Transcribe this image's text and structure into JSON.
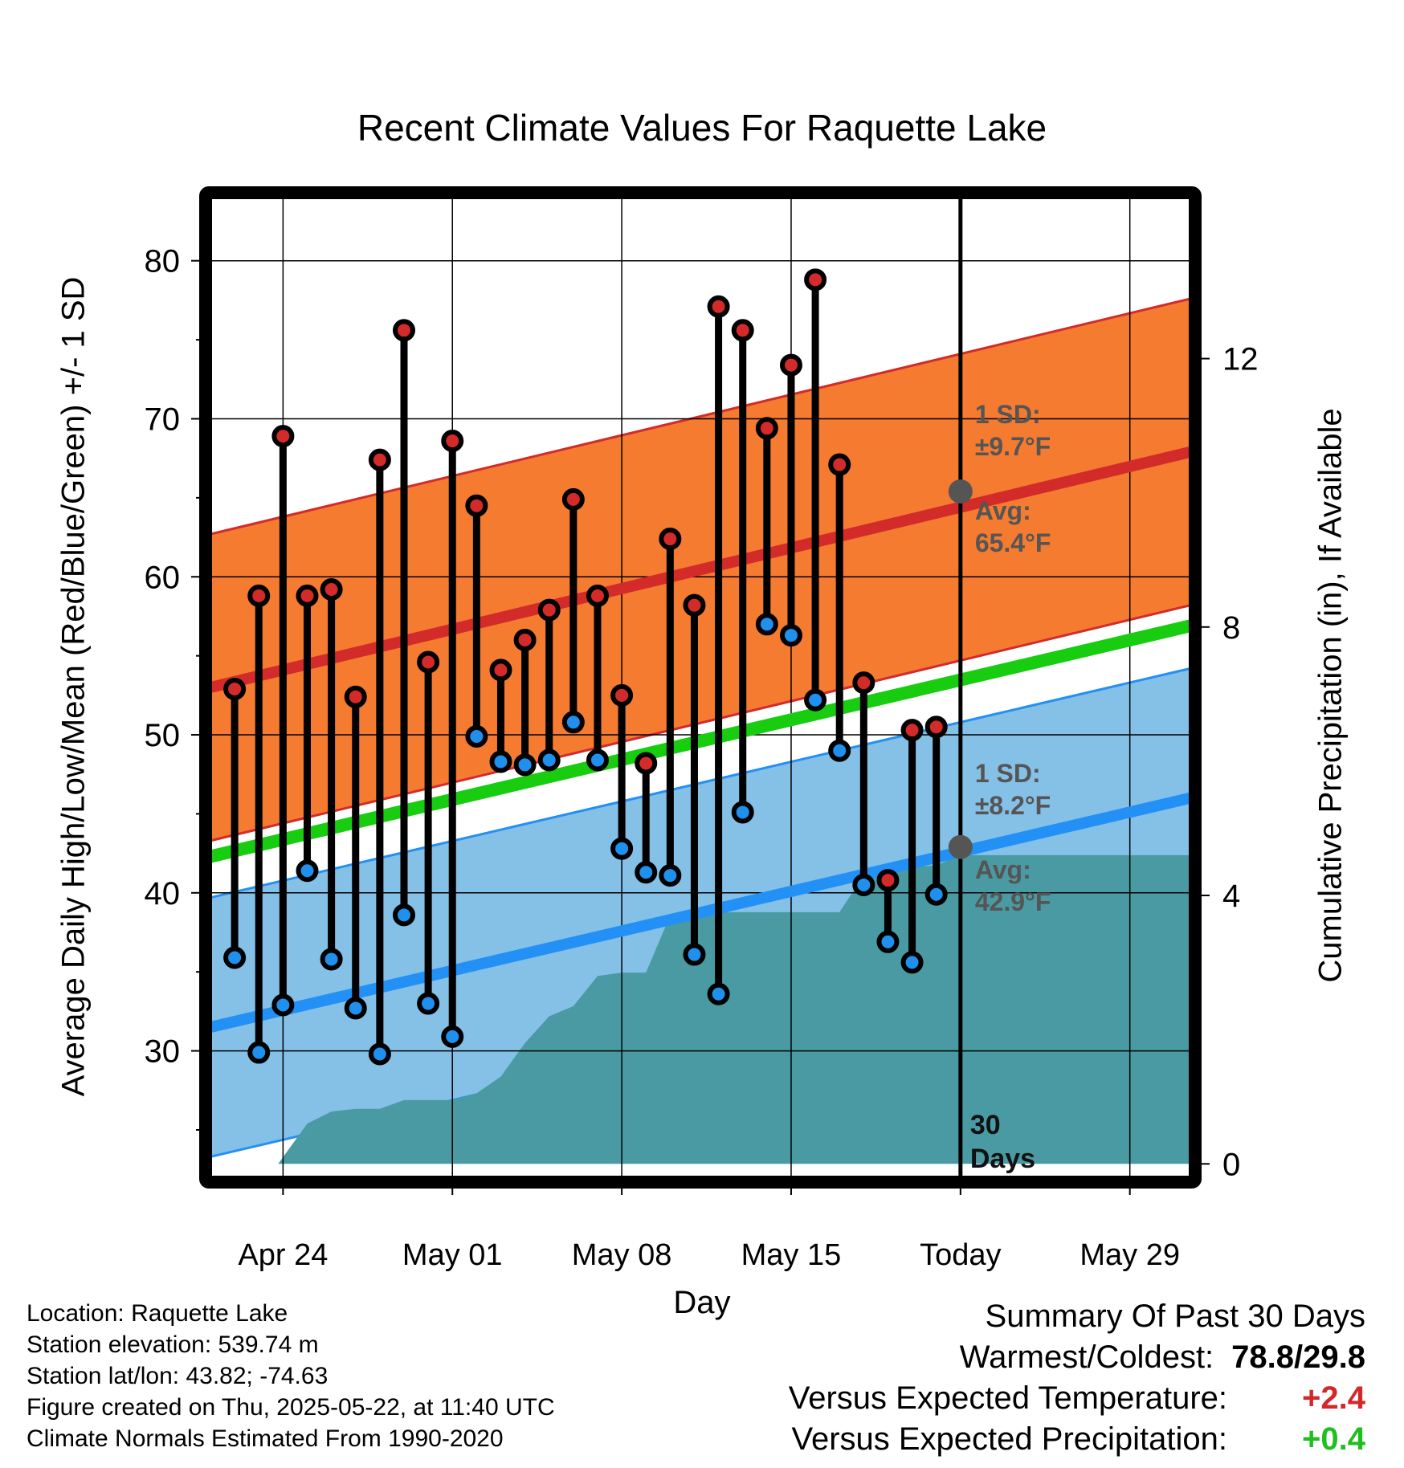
{
  "title": "Recent Climate Values For Raquette Lake",
  "chart_data": {
    "type": "line",
    "title": "Recent Climate Values For Raquette Lake",
    "xlabel": "Day",
    "ylabel_left": "Average Daily High/Low/Mean (Red/Blue/Green) +/- 1 SD",
    "ylabel_right": "Cumulative Precipitation (in), If Available",
    "x_ticks": [
      "Apr 24",
      "May 01",
      "May 08",
      "May 15",
      "Today",
      "May 29"
    ],
    "x_tick_days": [
      -28,
      -21,
      -14,
      -7,
      0,
      7
    ],
    "x_range_days": [
      -31,
      9.5
    ],
    "y_left_ticks": [
      30,
      40,
      50,
      60,
      70,
      80
    ],
    "y_left_range": [
      22,
      84
    ],
    "y_right_ticks": [
      0,
      4,
      8,
      12
    ],
    "y_right_range": [
      -0.2,
      14.4
    ],
    "grid": true,
    "today_marker": "30 Days",
    "daily": {
      "day": [
        -30,
        -29,
        -28,
        -27,
        -26,
        -25,
        -24,
        -23,
        -22,
        -21,
        -20,
        -19,
        -18,
        -17,
        -16,
        -15,
        -14,
        -13,
        -12,
        -11,
        -10,
        -9,
        -8,
        -7,
        -6,
        -5,
        -4,
        -3,
        -2,
        -1
      ],
      "high": [
        52.9,
        58.8,
        68.9,
        58.8,
        59.2,
        52.4,
        67.4,
        75.6,
        54.6,
        68.6,
        64.5,
        54.1,
        56.0,
        57.9,
        64.9,
        58.8,
        52.5,
        48.2,
        62.4,
        58.2,
        77.1,
        75.6,
        69.4,
        73.4,
        78.8,
        67.1,
        53.3,
        40.8,
        50.3,
        50.5
      ],
      "low": [
        35.9,
        29.9,
        32.9,
        41.4,
        35.8,
        32.7,
        29.8,
        38.6,
        33.0,
        30.9,
        49.9,
        48.3,
        48.1,
        48.4,
        50.8,
        48.4,
        42.8,
        41.3,
        41.1,
        36.1,
        33.6,
        45.1,
        57.0,
        56.3,
        52.2,
        49.0,
        40.5,
        36.9,
        35.6,
        39.9
      ]
    },
    "normals": {
      "days": [
        -31,
        9.5
      ],
      "avg_high": [
        53.0,
        67.9
      ],
      "high_sd": 9.7,
      "avg_mean": [
        42.3,
        56.9
      ],
      "avg_low": [
        31.5,
        46.0
      ],
      "low_sd": 8.2
    },
    "precip": {
      "day": [
        -31,
        -28.2,
        -27,
        -26,
        -25,
        -24,
        -23,
        -22,
        -21,
        -20,
        -19,
        -18,
        -17,
        -16,
        -15,
        -14,
        -13,
        -12,
        -11,
        -10,
        -9,
        -8,
        -7,
        -6,
        -5,
        -4,
        -3,
        -2,
        -1,
        0,
        9.5
      ],
      "cum": [
        0,
        0,
        0.6,
        0.78,
        0.82,
        0.82,
        0.95,
        0.95,
        0.95,
        1.05,
        1.3,
        1.8,
        2.2,
        2.35,
        2.8,
        2.85,
        2.85,
        3.7,
        3.75,
        3.75,
        3.75,
        3.75,
        3.75,
        3.75,
        3.75,
        4.3,
        4.42,
        4.42,
        4.45,
        4.6,
        4.6
      ]
    },
    "annotations": {
      "high_sd": "1 SD:",
      "high_sd_val": "±9.7°F",
      "high_avg": "Avg:",
      "high_avg_val": "65.4°F",
      "low_sd": "1 SD:",
      "low_sd_val": "±8.2°F",
      "low_avg": "Avg:",
      "low_avg_val": "42.9°F",
      "today_high_avg": 65.4,
      "today_low_avg": 42.9
    },
    "colors": {
      "high_band": "#f47b30",
      "high_line": "#d32a2a",
      "low_band": "#85c0e7",
      "low_line": "#2290f5",
      "mean_line": "#18cc10",
      "precip": "#4a9aa3",
      "annotation": "#555555"
    }
  },
  "info": {
    "location": "Location: Raquette Lake",
    "elevation": "Station elevation: 539.74 m",
    "latlon": "Station lat/lon: 43.82; -74.63",
    "created": "Figure created on Thu, 2025-05-22, at 11:40 UTC",
    "normals": "Climate Normals Estimated From 1990-2020"
  },
  "summary": {
    "heading": "Summary Of Past 30 Days",
    "warm_label": "Warmest/Coldest:",
    "warm_value": "78.8/29.8",
    "temp_label": "Versus Expected Temperature:",
    "temp_value": "+2.4",
    "precip_label": "Versus Expected Precipitation:",
    "precip_value": "+0.4"
  }
}
